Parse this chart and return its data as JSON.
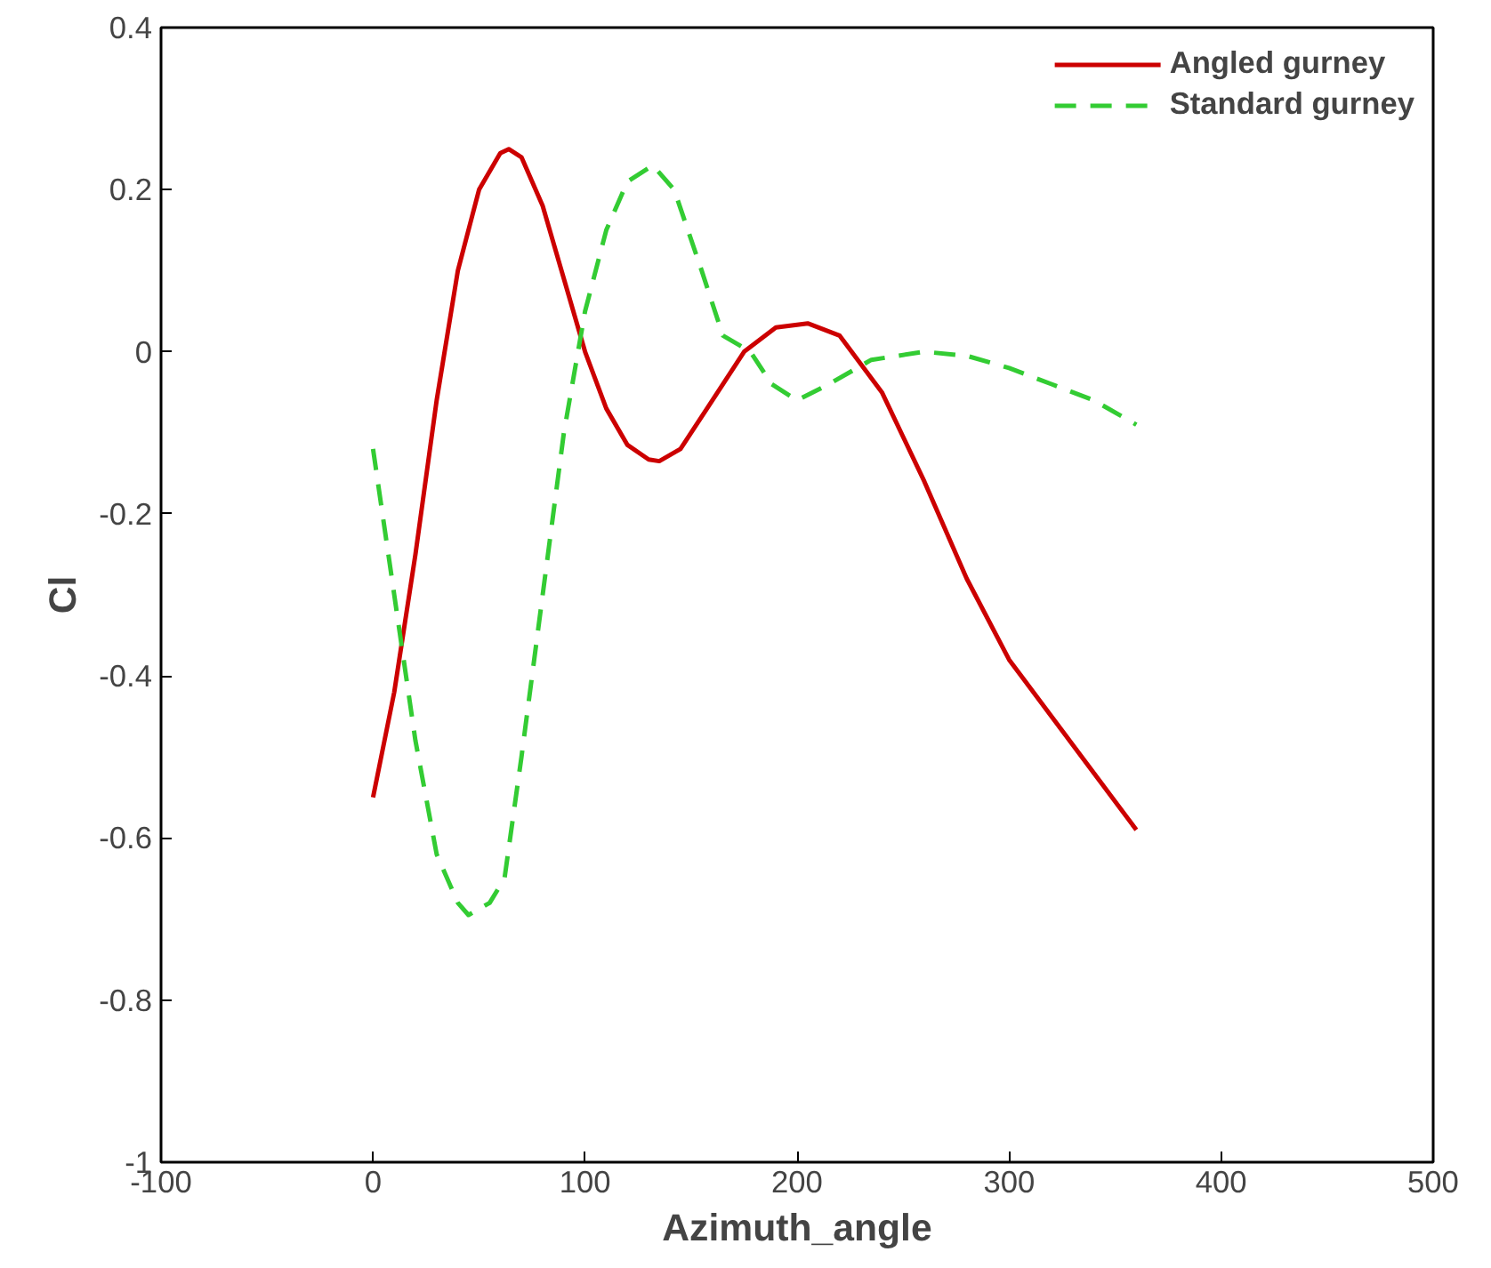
{
  "chart_data": {
    "type": "line",
    "xlabel": "Azimuth_angle",
    "ylabel": "Cl",
    "xlim": [
      -100,
      500
    ],
    "ylim": [
      -1,
      0.4
    ],
    "xticks": [
      -100,
      0,
      100,
      200,
      300,
      400,
      500
    ],
    "yticks": [
      -1,
      -0.8,
      -0.6,
      -0.4,
      -0.2,
      0,
      0.2,
      0.4
    ],
    "grid": false,
    "legend": "top right",
    "series": [
      {
        "name": "Angled gurney",
        "color": "#cc0000",
        "line_style": "solid",
        "x": [
          0,
          10,
          20,
          30,
          40,
          50,
          60,
          64,
          70,
          80,
          90,
          100,
          110,
          120,
          130,
          135,
          145,
          160,
          175,
          190,
          205,
          220,
          240,
          260,
          280,
          300,
          320,
          340,
          360
        ],
        "values": [
          -0.55,
          -0.42,
          -0.25,
          -0.06,
          0.1,
          0.2,
          0.245,
          0.25,
          0.24,
          0.18,
          0.09,
          0.0,
          -0.07,
          -0.115,
          -0.133,
          -0.135,
          -0.12,
          -0.06,
          0.0,
          0.03,
          0.035,
          0.02,
          -0.05,
          -0.16,
          -0.28,
          -0.38,
          -0.45,
          -0.52,
          -0.59
        ]
      },
      {
        "name": "Standard gurney",
        "color": "#33cc33",
        "line_style": "dashed",
        "x": [
          0,
          10,
          20,
          30,
          40,
          45,
          55,
          62,
          70,
          80,
          90,
          100,
          110,
          120,
          132,
          142,
          155,
          165,
          178,
          188,
          200,
          215,
          235,
          260,
          280,
          300,
          320,
          340,
          360
        ],
        "values": [
          -0.12,
          -0.3,
          -0.48,
          -0.62,
          -0.68,
          -0.695,
          -0.68,
          -0.65,
          -0.5,
          -0.3,
          -0.1,
          0.05,
          0.15,
          0.21,
          0.23,
          0.2,
          0.1,
          0.02,
          0.0,
          -0.04,
          -0.06,
          -0.04,
          -0.01,
          0.0,
          -0.005,
          -0.02,
          -0.04,
          -0.06,
          -0.09
        ]
      }
    ]
  }
}
